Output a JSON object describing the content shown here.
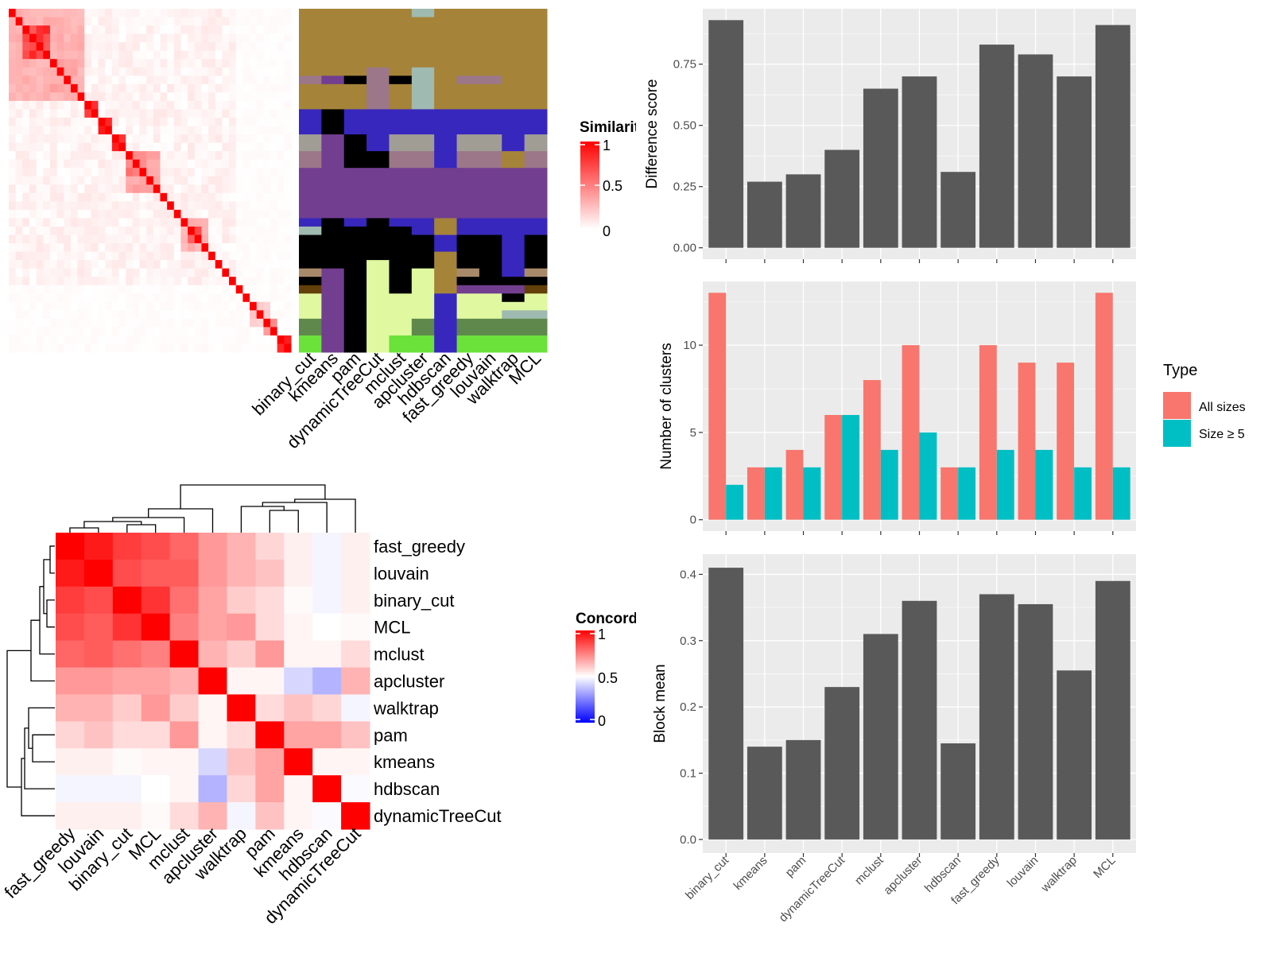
{
  "similarity_legend": {
    "title": "Similarity",
    "ticks": [
      "1",
      "0.5",
      "0"
    ],
    "colors": [
      "#ffffff",
      "#ff0000"
    ]
  },
  "concordance_legend": {
    "title": "Concordance",
    "ticks": [
      "1",
      "0.5",
      "0"
    ],
    "colors": [
      "#0000ff",
      "#ffffff",
      "#ff0000"
    ]
  },
  "chart_data": [
    {
      "type": "heatmap",
      "size": 41,
      "scale": [
        0,
        1
      ],
      "diagonal": 1,
      "background": 0.06,
      "blocks": [
        {
          "from": 0,
          "to": 10,
          "value": 0.3
        },
        {
          "from": 2,
          "to": 5,
          "value": 0.75
        },
        {
          "from": 6,
          "to": 9,
          "value": 0.35
        },
        {
          "from": 11,
          "to": 12,
          "value": 0.75
        },
        {
          "from": 13,
          "to": 14,
          "value": 0.85
        },
        {
          "from": 15,
          "to": 16,
          "value": 0.8
        },
        {
          "from": 17,
          "to": 21,
          "value": 0.35
        },
        {
          "from": 17,
          "to": 19,
          "value": 0.5
        },
        {
          "from": 25,
          "to": 28,
          "value": 0.3
        },
        {
          "from": 26,
          "to": 27,
          "value": 0.7
        },
        {
          "from": 35,
          "to": 37,
          "value": 0.2
        },
        {
          "from": 37,
          "to": 38,
          "value": 0.45
        },
        {
          "from": 39,
          "to": 40,
          "value": 0.8
        }
      ]
    },
    {
      "type": "heatmap",
      "columns": [
        "binary_cut",
        "kmeans",
        "pam",
        "dynamicTreeCut",
        "mclust",
        "apcluster",
        "hdbscan",
        "fast_greedy",
        "louvain",
        "walktrap",
        "MCL"
      ],
      "palette": {
        "O": "#a58339",
        "M": "#9c7789",
        "P": "#723e90",
        "K": "#000000",
        "T": "#9fbab0",
        "B": "#3727bd",
        "G": "#a09d95",
        "L": "#e0f9a0",
        "D": "#5f884c",
        "N": "#6be23a",
        "R": "#a88a6a",
        "W": "#633f0a"
      },
      "rows": [
        "OOOOOTOOOOO",
        "OOOOOOOOOOO",
        "OOOOOOOOOOO",
        "OOOOOOOOOOO",
        "OOOOOOOOOOO",
        "OOOOOOOOOOO",
        "OOOOOOOOOOO",
        "OOOMOTOOOOO",
        "MPKMKTOMMOO",
        "OOOMOTOOOOO",
        "OOOMOTOOOOO",
        "OOOMOTOOOOO",
        "BKBBBBBBBBB",
        "BKBBBBBBBBB",
        "BKBBBBBBBBB",
        "GPKBGGBGGBG",
        "GPKBGGBGGBG",
        "MPKKMMBMMOM",
        "MPKKMMBMMOM",
        "PPPPPPPPPPP",
        "PPPPPPPPPPP",
        "PPPPPPPPPPP",
        "PPPPPPPPPPP",
        "PPPPPPPPPPP",
        "PPPPPPPPPPP",
        "BKBKBBOBBBB",
        "TKKKKBOBBBB",
        "KKKKKKBKKBK",
        "KKKKKKBKKBK",
        "KKKKKKOKKBK",
        "KKKLKKOKKBK",
        "RPKLKLORKBR",
        "KPKLKLOKKKK",
        "WPKLKLOPPPW",
        "LPKLLLBLLKL",
        "LPKLLLBLLLL",
        "LPKLLLBLLTT",
        "DPKLLDBDDDD",
        "DPKLLDBDDDD",
        "NPKLNNBNNNN",
        "NPKLNNBNNNN"
      ]
    },
    {
      "type": "heatmap",
      "labels": [
        "fast_greedy",
        "louvain",
        "binary_cut",
        "MCL",
        "mclust",
        "apcluster",
        "walktrap",
        "pam",
        "kmeans",
        "hdbscan",
        "dynamicTreeCut"
      ],
      "scale": [
        0,
        1
      ],
      "values": [
        [
          1,
          0.95,
          0.88,
          0.85,
          0.8,
          0.7,
          0.65,
          0.58,
          0.53,
          0.48,
          0.53
        ],
        [
          0.95,
          1,
          0.85,
          0.82,
          0.82,
          0.7,
          0.65,
          0.62,
          0.53,
          0.48,
          0.53
        ],
        [
          0.88,
          0.85,
          1,
          0.9,
          0.78,
          0.68,
          0.6,
          0.57,
          0.51,
          0.48,
          0.53
        ],
        [
          0.85,
          0.82,
          0.9,
          1,
          0.75,
          0.68,
          0.7,
          0.57,
          0.52,
          0.5,
          0.51
        ],
        [
          0.8,
          0.82,
          0.78,
          0.75,
          1,
          0.65,
          0.6,
          0.7,
          0.52,
          0.52,
          0.57
        ],
        [
          0.7,
          0.7,
          0.68,
          0.68,
          0.65,
          1,
          0.52,
          0.52,
          0.42,
          0.35,
          0.65
        ],
        [
          0.65,
          0.65,
          0.6,
          0.7,
          0.6,
          0.52,
          1,
          0.57,
          0.62,
          0.58,
          0.48
        ],
        [
          0.58,
          0.62,
          0.57,
          0.57,
          0.7,
          0.52,
          0.57,
          1,
          0.68,
          0.68,
          0.62
        ],
        [
          0.53,
          0.53,
          0.51,
          0.52,
          0.52,
          0.42,
          0.62,
          0.68,
          1,
          0.52,
          0.52
        ],
        [
          0.48,
          0.48,
          0.48,
          0.5,
          0.52,
          0.35,
          0.58,
          0.68,
          0.52,
          1,
          0.49
        ],
        [
          0.53,
          0.53,
          0.53,
          0.51,
          0.57,
          0.65,
          0.48,
          0.62,
          0.52,
          0.49,
          1
        ]
      ]
    },
    {
      "type": "bar",
      "categories": [
        "binary_cut",
        "kmeans",
        "pam",
        "dynamicTreeCut",
        "mclust",
        "apcluster",
        "hdbscan",
        "fast_greedy",
        "louvain",
        "walktrap",
        "MCL"
      ],
      "values": [
        0.93,
        0.27,
        0.3,
        0.4,
        0.65,
        0.7,
        0.31,
        0.83,
        0.79,
        0.7,
        0.91
      ],
      "ylabel": "Difference score",
      "yticks": [
        "0.00",
        "0.25",
        "0.50",
        "0.75"
      ],
      "color": "#595959",
      "grid": true
    },
    {
      "type": "bar",
      "categories": [
        "binary_cut",
        "kmeans",
        "pam",
        "dynamicTreeCut",
        "mclust",
        "apcluster",
        "hdbscan",
        "fast_greedy",
        "louvain",
        "walktrap",
        "MCL"
      ],
      "series": [
        {
          "name": "All sizes",
          "values": [
            13,
            3,
            4,
            6,
            8,
            10,
            3,
            10,
            9,
            9,
            13
          ],
          "color": "#f8766d"
        },
        {
          "name": "Size ≥ 5",
          "values": [
            2,
            3,
            3,
            6,
            4,
            5,
            3,
            4,
            4,
            3,
            3
          ],
          "color": "#00bfc4"
        }
      ],
      "ylabel": "Number of clusters",
      "yticks": [
        "0",
        "5",
        "10"
      ],
      "legend": {
        "title": "Type",
        "position": "right"
      },
      "grid": true
    },
    {
      "type": "bar",
      "categories": [
        "binary_cut",
        "kmeans",
        "pam",
        "dynamicTreeCut",
        "mclust",
        "apcluster",
        "hdbscan",
        "fast_greedy",
        "louvain",
        "walktrap",
        "MCL"
      ],
      "values": [
        0.41,
        0.14,
        0.15,
        0.23,
        0.31,
        0.36,
        0.145,
        0.37,
        0.355,
        0.255,
        0.39
      ],
      "ylabel": "Block mean",
      "yticks": [
        "0.0",
        "0.1",
        "0.2",
        "0.3",
        "0.4"
      ],
      "color": "#595959",
      "grid": true
    }
  ]
}
